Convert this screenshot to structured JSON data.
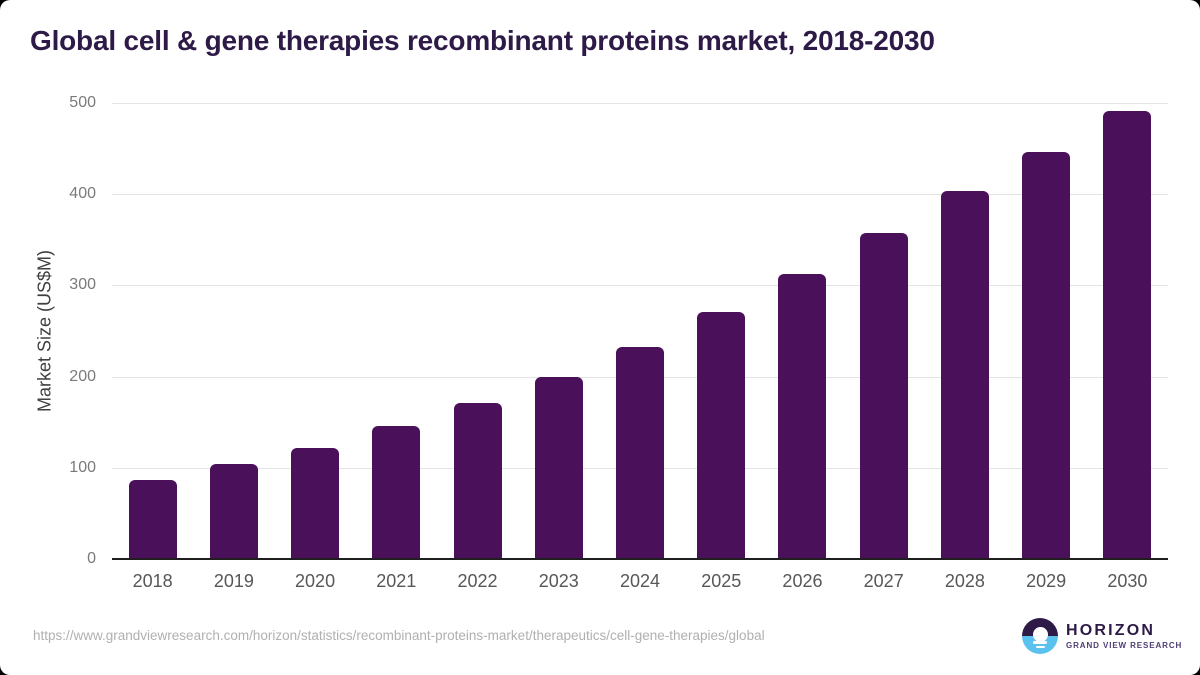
{
  "chart_data": {
    "type": "bar",
    "title": "Global cell & gene therapies recombinant proteins market, 2018-2030",
    "categories": [
      "2018",
      "2019",
      "2020",
      "2021",
      "2022",
      "2023",
      "2024",
      "2025",
      "2026",
      "2027",
      "2028",
      "2029",
      "2030"
    ],
    "values": [
      87,
      104,
      122,
      146,
      171,
      200,
      232,
      271,
      313,
      357,
      403,
      446,
      491
    ],
    "xlabel": "",
    "ylabel": "Market Size (US$M)",
    "ylim": [
      0,
      500
    ],
    "yticks": [
      0,
      100,
      200,
      300,
      400,
      500
    ],
    "grid": true,
    "legend_position": "none",
    "bar_color": "#4a105a"
  },
  "footer": {
    "source_url": "https://www.grandviewresearch.com/horizon/statistics/recombinant-proteins-market/therapeutics/cell-gene-therapies/global",
    "logo": {
      "brand": "HORIZON",
      "sub_brand": "GRAND VIEW RESEARCH"
    }
  },
  "colors": {
    "title_text": "#2e1a47",
    "bar": "#4a105a",
    "gridline": "#e4e4e4",
    "axis_line": "#1f1f1f",
    "y_tick_label": "#7a7a7a",
    "category_label": "#575757",
    "url_text": "#b0b0b0",
    "logo_dark": "#2e1a47",
    "logo_blue": "#5bc2f0"
  }
}
